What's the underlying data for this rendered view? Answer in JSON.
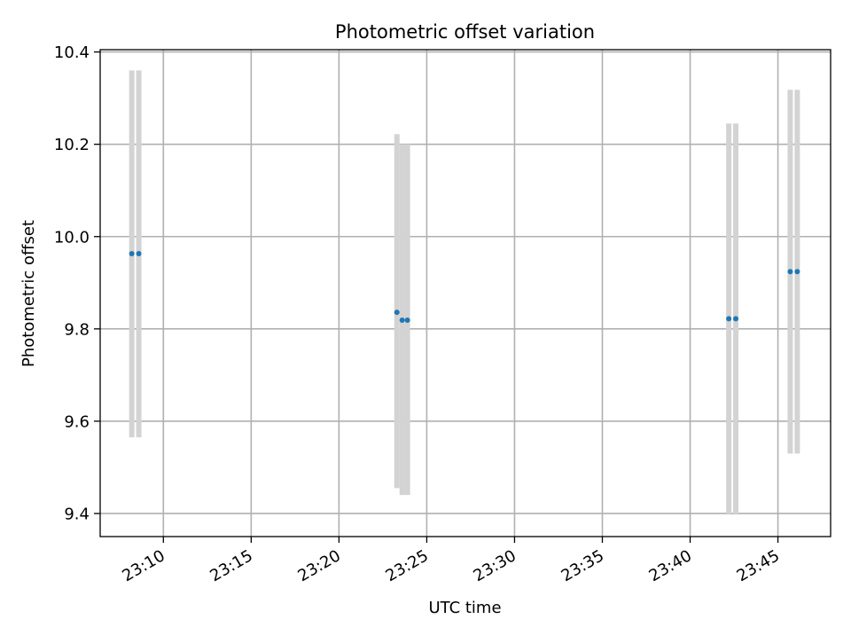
{
  "chart_data": {
    "type": "scatter",
    "title": "Photometric offset variation",
    "xlabel": "UTC time",
    "ylabel": "Photometric offset",
    "x_unit": "time of day (HH:MM)",
    "xlim": [
      "23:06:24",
      "23:48:00"
    ],
    "ylim": [
      9.35,
      10.405
    ],
    "x_ticks": [
      "23:10",
      "23:15",
      "23:20",
      "23:25",
      "23:30",
      "23:35",
      "23:40",
      "23:45"
    ],
    "y_ticks": [
      "9.4",
      "9.6",
      "9.8",
      "10.0",
      "10.2",
      "10.4"
    ],
    "grid": true,
    "points": [
      {
        "time": "23:08:12",
        "y": 9.963,
        "ylow": 9.565,
        "yhigh": 10.36
      },
      {
        "time": "23:08:36",
        "y": 9.963,
        "ylow": 9.565,
        "yhigh": 10.36
      },
      {
        "time": "23:23:18",
        "y": 9.836,
        "ylow": 9.455,
        "yhigh": 10.222
      },
      {
        "time": "23:23:36",
        "y": 9.819,
        "ylow": 9.44,
        "yhigh": 10.2
      },
      {
        "time": "23:23:54",
        "y": 9.819,
        "ylow": 9.44,
        "yhigh": 10.2
      },
      {
        "time": "23:42:12",
        "y": 9.822,
        "ylow": 9.4,
        "yhigh": 10.245
      },
      {
        "time": "23:42:36",
        "y": 9.822,
        "ylow": 9.4,
        "yhigh": 10.245
      },
      {
        "time": "23:45:42",
        "y": 9.924,
        "ylow": 9.53,
        "yhigh": 10.318
      },
      {
        "time": "23:46:06",
        "y": 9.924,
        "ylow": 9.53,
        "yhigh": 10.318
      }
    ],
    "colors": {
      "marker": "#1f77b4",
      "errorbar": "#d3d3d3",
      "grid": "#b0b0b0",
      "axis": "#000000"
    }
  }
}
